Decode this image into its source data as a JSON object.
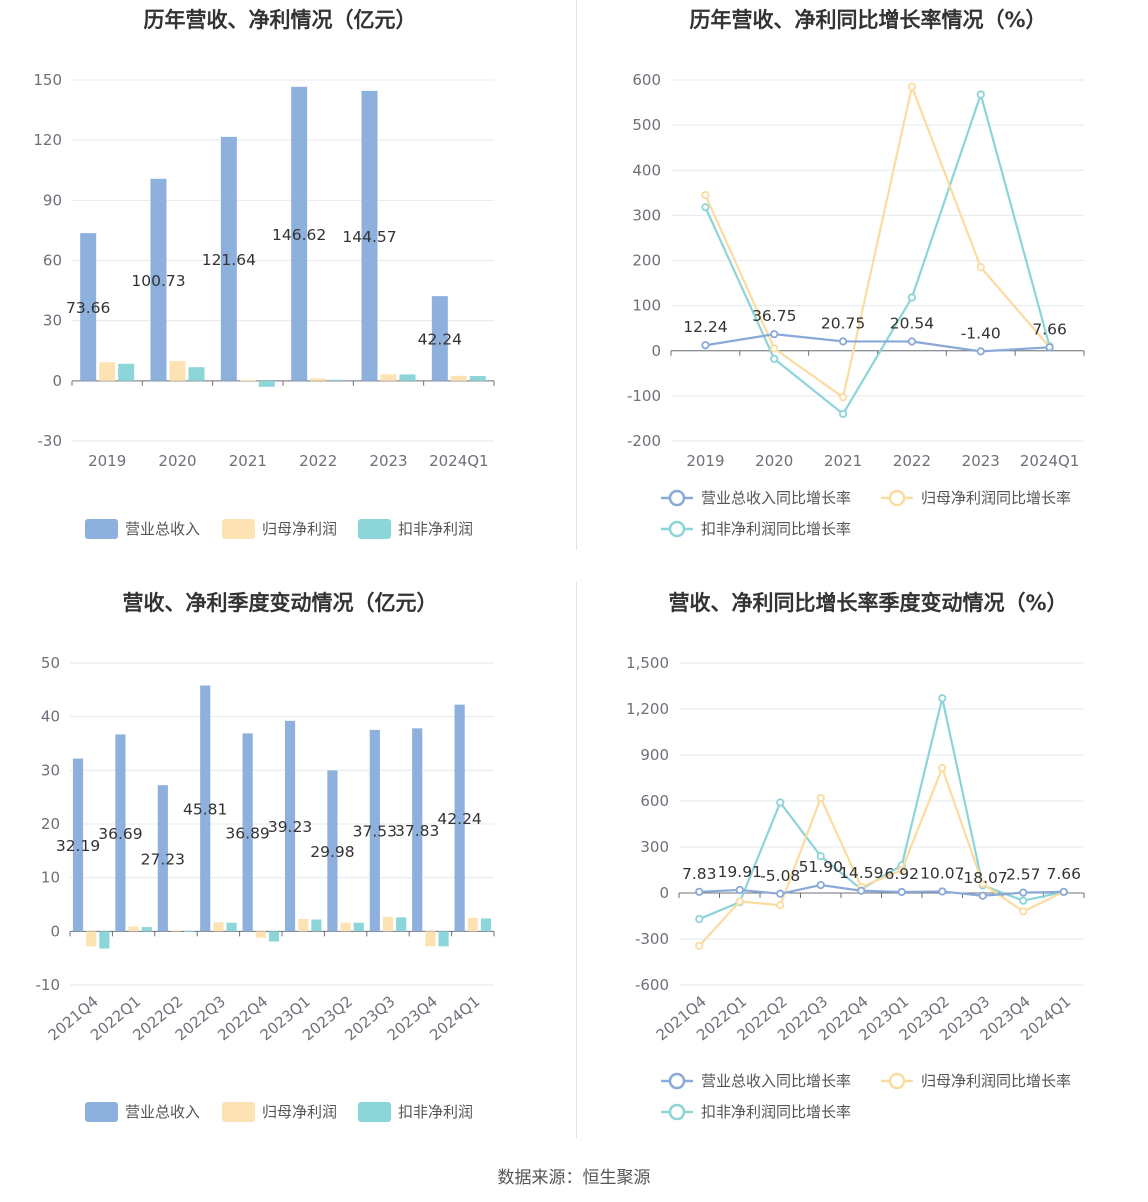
{
  "source": "数据来源：恒生聚源",
  "chart_data": [
    {
      "id": "annual_amount",
      "type": "bar",
      "title": "历年营收、净利情况（亿元）",
      "categories": [
        "2019",
        "2020",
        "2021",
        "2022",
        "2023",
        "2024Q1"
      ],
      "ylim": [
        -30,
        150
      ],
      "yticks": [
        -30,
        0,
        30,
        60,
        90,
        120,
        150
      ],
      "grid": true,
      "legend_position": "bottom",
      "series": [
        {
          "name": "营业总收入",
          "color": "#8eb0dd",
          "values": [
            73.66,
            100.73,
            121.64,
            146.62,
            144.57,
            42.24
          ],
          "labels": [
            "73.66",
            "100.73",
            "121.64",
            "146.62",
            "144.57",
            "42.24"
          ]
        },
        {
          "name": "归母净利润",
          "color": "#fde3b3",
          "values": [
            9.3,
            9.9,
            0.4,
            1.2,
            3.3,
            2.5
          ]
        },
        {
          "name": "扣非净利润",
          "color": "#8cd6d9",
          "values": [
            8.5,
            6.8,
            -3.0,
            0.5,
            3.2,
            2.4
          ]
        }
      ]
    },
    {
      "id": "annual_growth",
      "type": "line",
      "title": "历年营收、净利同比增长率情况（%）",
      "categories": [
        "2019",
        "2020",
        "2021",
        "2022",
        "2023",
        "2024Q1"
      ],
      "ylim": [
        -200,
        600
      ],
      "yticks": [
        -200,
        -100,
        0,
        100,
        200,
        300,
        400,
        500,
        600
      ],
      "grid": true,
      "legend_position": "bottom",
      "series": [
        {
          "name": "营业总收入同比增长率",
          "color": "#8aa9d8",
          "values": [
            12.24,
            36.75,
            20.75,
            20.54,
            -1.4,
            7.66
          ],
          "labels": [
            "12.24",
            "36.75",
            "20.75",
            "20.54",
            "-1.40",
            "7.66"
          ]
        },
        {
          "name": "归母净利润同比增长率",
          "color": "#fcdba0",
          "values": [
            345,
            5,
            -103,
            585,
            185,
            8
          ]
        },
        {
          "name": "扣非净利润同比增长率",
          "color": "#8dd4d9",
          "values": [
            318,
            -18,
            -140,
            118,
            568,
            10
          ]
        }
      ]
    },
    {
      "id": "quarterly_amount",
      "type": "bar",
      "title": "营收、净利季度变动情况（亿元）",
      "categories": [
        "2021Q4",
        "2022Q1",
        "2022Q2",
        "2022Q3",
        "2022Q4",
        "2023Q1",
        "2023Q2",
        "2023Q3",
        "2023Q4",
        "2024Q1"
      ],
      "ylim": [
        -10,
        50
      ],
      "yticks": [
        -10,
        0,
        10,
        20,
        30,
        40,
        50
      ],
      "grid": true,
      "legend_position": "bottom",
      "series": [
        {
          "name": "营业总收入",
          "color": "#8eb0dd",
          "values": [
            32.19,
            36.69,
            27.23,
            45.81,
            36.89,
            39.23,
            29.98,
            37.53,
            37.83,
            42.24
          ],
          "labels": [
            "32.19",
            "36.69",
            "27.23",
            "45.81",
            "36.89",
            "39.23",
            "29.98",
            "37.53",
            "37.83",
            "42.24"
          ]
        },
        {
          "name": "归母净利润",
          "color": "#fde3b3",
          "values": [
            -2.8,
            0.9,
            0.2,
            1.7,
            -1.2,
            2.3,
            1.6,
            2.7,
            -2.8,
            2.5
          ]
        },
        {
          "name": "扣非净利润",
          "color": "#8cd6d9",
          "values": [
            -3.2,
            0.8,
            0.1,
            1.6,
            -1.9,
            2.2,
            1.6,
            2.6,
            -2.8,
            2.4
          ]
        }
      ]
    },
    {
      "id": "quarterly_growth",
      "type": "line",
      "title": "营收、净利同比增长率季度变动情况（%）",
      "categories": [
        "2021Q4",
        "2022Q1",
        "2022Q2",
        "2022Q3",
        "2022Q4",
        "2023Q1",
        "2023Q2",
        "2023Q3",
        "2023Q4",
        "2024Q1"
      ],
      "ylim": [
        -600,
        1500
      ],
      "yticks": [
        -600,
        -300,
        0,
        300,
        600,
        900,
        1200,
        1500
      ],
      "ytick_labels": [
        "-600",
        "-300",
        "0",
        "300",
        "600",
        "900",
        "1,200",
        "1,500"
      ],
      "grid": true,
      "legend_position": "bottom",
      "series": [
        {
          "name": "营业总收入同比增长率",
          "color": "#8aa9d8",
          "values": [
            7.83,
            19.91,
            -5.08,
            51.9,
            14.59,
            6.92,
            10.07,
            -18.07,
            2.57,
            7.66
          ],
          "labels": [
            "7.83",
            "19.91",
            "-5.08",
            "51.90",
            "14.59",
            "6.92",
            "10.07",
            "-18.07",
            "2.57",
            "7.66"
          ]
        },
        {
          "name": "归母净利润同比增长率",
          "color": "#fcdba0",
          "values": [
            -345,
            -55,
            -80,
            620,
            40,
            150,
            815,
            60,
            -120,
            7
          ]
        },
        {
          "name": "扣非净利润同比增长率",
          "color": "#8dd4d9",
          "values": [
            -170,
            -60,
            590,
            240,
            25,
            180,
            1270,
            50,
            -50,
            7
          ]
        }
      ]
    }
  ]
}
